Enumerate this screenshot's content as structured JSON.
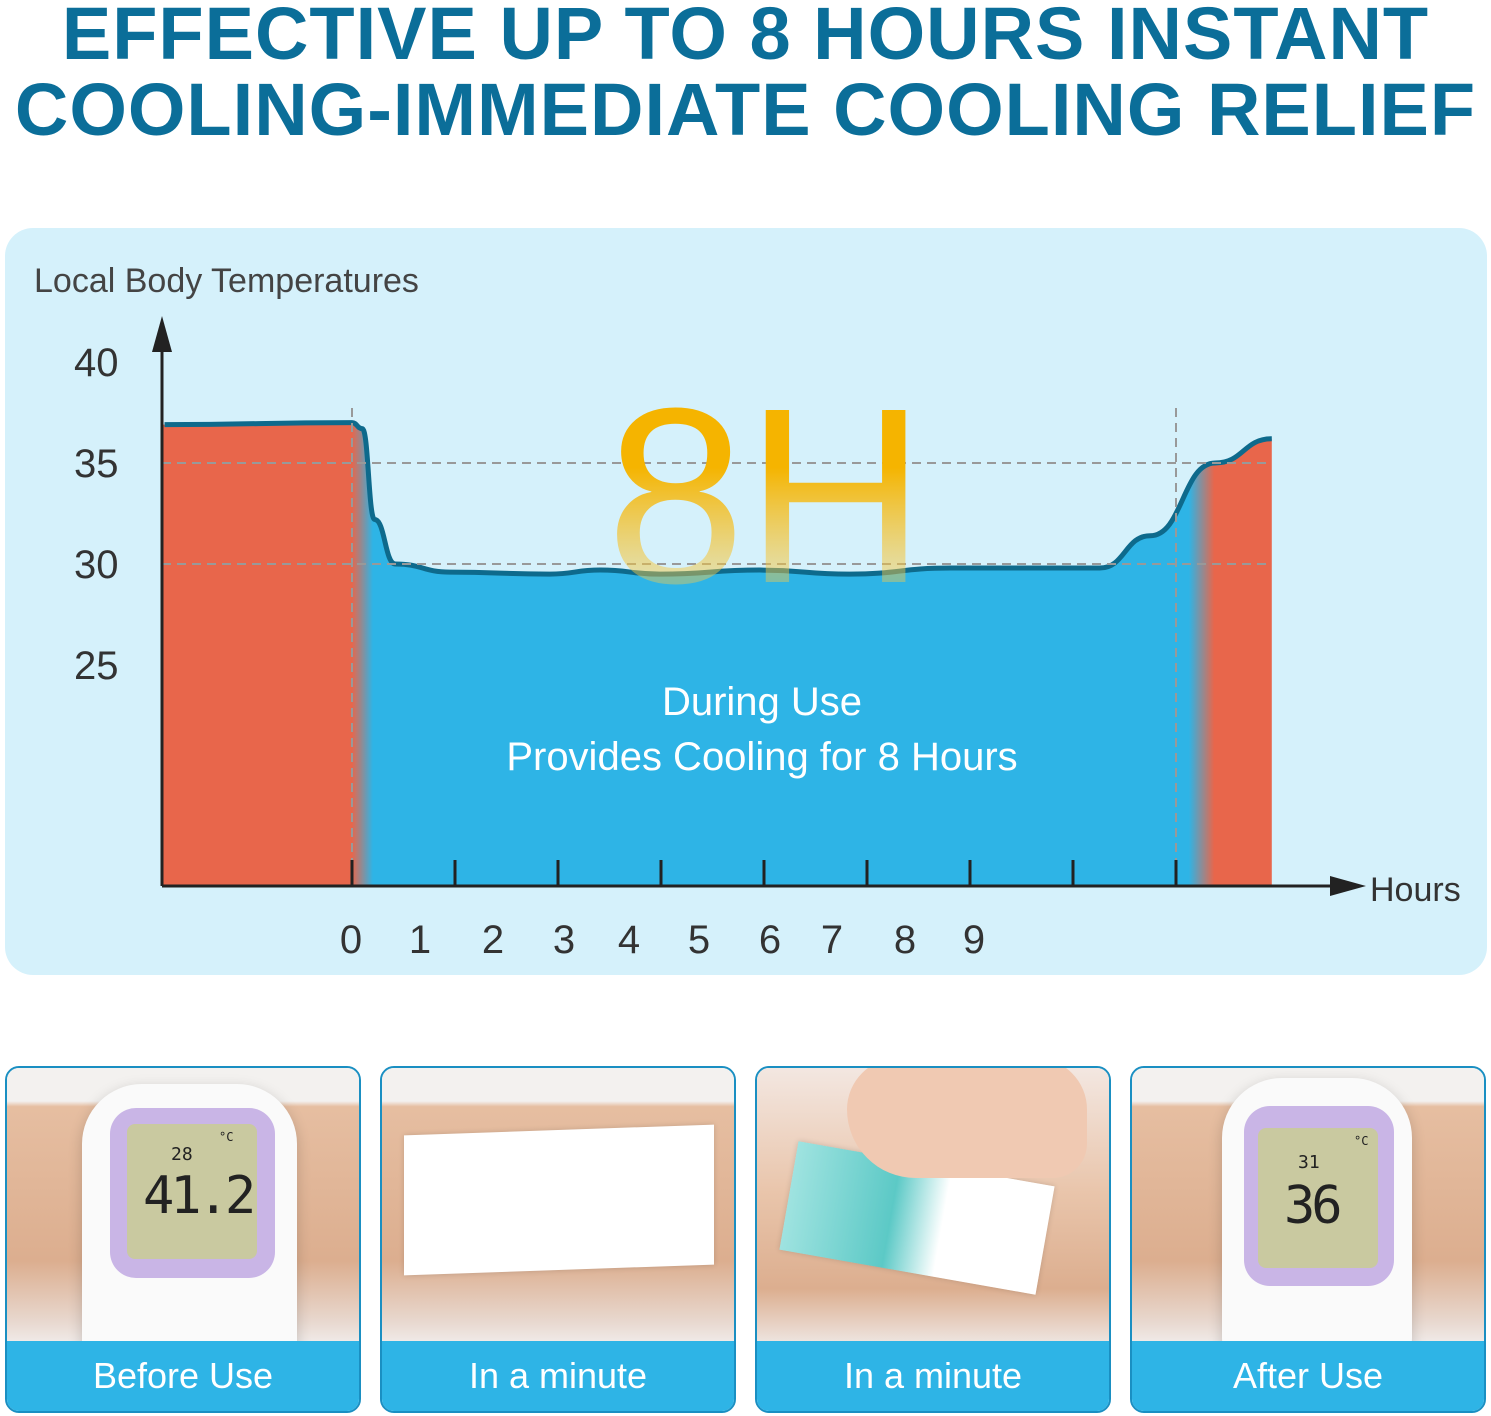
{
  "headline": {
    "line1": "EFFECTIVE UP TO 8 HOURS INSTANT",
    "line2": "COOLING-IMMEDIATE COOLING RELIEF"
  },
  "colors": {
    "title": "#0b6e99",
    "panel": "#d5f1fb",
    "warm": "#e8664b",
    "cool": "#2eb4e6",
    "curve": "#0e6a8c",
    "highlight": "#f5b400"
  },
  "chart_data": {
    "type": "area",
    "ylabel": "Local Body Temperatures",
    "xlabel": "Hours",
    "yticks": [
      "40",
      "35",
      "30",
      "25"
    ],
    "xticks": [
      "0",
      "1",
      "2",
      "3",
      "4",
      "5",
      "6",
      "7",
      "8",
      "9"
    ],
    "gridlines": [
      35,
      30
    ],
    "ylim": [
      14,
      42
    ],
    "xlim": [
      -1.85,
      9.8
    ],
    "big_label": "8H",
    "annotation": {
      "line1": "During Use",
      "line2": "Provides Cooling for 8 Hours"
    },
    "series": [
      {
        "x": [
          -1.82,
          0,
          0.1,
          0.22,
          0.42,
          0.95,
          1.92,
          2.41,
          2.99,
          3.96,
          4.83,
          5.81,
          7.26,
          7.75,
          8.38,
          8.93
        ],
        "y": [
          36.9,
          37.0,
          36.7,
          32.2,
          30.0,
          29.6,
          29.5,
          29.7,
          29.5,
          29.7,
          29.5,
          29.8,
          29.8,
          31.4,
          35.0,
          36.2
        ]
      }
    ],
    "regions": [
      {
        "label": "before",
        "from": -1.85,
        "to": 0,
        "color": "#e8664b"
      },
      {
        "label": "during",
        "from": 0,
        "to": 8,
        "color": "#2eb4e6"
      },
      {
        "label": "after",
        "from": 8,
        "to": 8.93,
        "color": "#e8664b"
      }
    ]
  },
  "cards": [
    {
      "label": "Before Use",
      "reading": "41.2",
      "ambient": "28",
      "unit": "°C"
    },
    {
      "label": "In a minute"
    },
    {
      "label": "In a minute"
    },
    {
      "label": "After Use",
      "reading": "36",
      "ambient": "31",
      "unit": "°C"
    }
  ]
}
